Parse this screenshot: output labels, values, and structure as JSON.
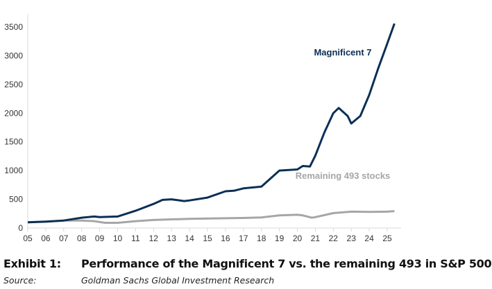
{
  "chart_data": {
    "type": "line",
    "title": "",
    "xlabel": "",
    "ylabel": "",
    "xlim": [
      2005,
      2025.8
    ],
    "ylim": [
      0,
      3500
    ],
    "yticks": [
      0,
      500,
      1000,
      1500,
      2000,
      2500,
      3000,
      3500
    ],
    "xtick_labels": [
      "05",
      "06",
      "07",
      "08",
      "09",
      "10",
      "11",
      "12",
      "13",
      "14",
      "15",
      "16",
      "17",
      "18",
      "19",
      "20",
      "21",
      "22",
      "23",
      "24",
      "25"
    ],
    "grid": false,
    "series": [
      {
        "name": "Magnificent 7",
        "color": "#0b2f55",
        "x": [
          2005,
          2006,
          2007,
          2008,
          2008.7,
          2009,
          2010,
          2011,
          2012,
          2012.5,
          2013,
          2013.7,
          2014,
          2015,
          2016,
          2016.5,
          2017,
          2018,
          2019,
          2020,
          2020.3,
          2020.7,
          2021,
          2021.5,
          2022,
          2022.3,
          2022.8,
          2023,
          2023.5,
          2024,
          2024.5,
          2025,
          2025.4
        ],
        "y": [
          100,
          110,
          130,
          180,
          200,
          190,
          200,
          300,
          420,
          490,
          500,
          470,
          480,
          530,
          640,
          650,
          690,
          720,
          1000,
          1020,
          1080,
          1070,
          1260,
          1660,
          2000,
          2090,
          1950,
          1820,
          1950,
          2320,
          2780,
          3210,
          3560
        ]
      },
      {
        "name": "Remaining 493 stocks",
        "color": "#a6a6a6",
        "x": [
          2005,
          2007,
          2008,
          2008.7,
          2009.3,
          2010,
          2011,
          2012,
          2014,
          2016,
          2017,
          2018,
          2019,
          2020,
          2020.3,
          2020.8,
          2021,
          2022,
          2023,
          2024,
          2025,
          2025.4
        ],
        "y": [
          100,
          130,
          130,
          120,
          90,
          90,
          120,
          140,
          160,
          170,
          175,
          185,
          220,
          230,
          220,
          180,
          190,
          260,
          285,
          280,
          285,
          295
        ]
      }
    ]
  },
  "caption": {
    "exhibit_label": "Exhibit 1:",
    "title": "Performance of the Magnificent 7 vs. the remaining 493 in S&P 500",
    "source_label": "Source:",
    "source": "Goldman Sachs Global Investment Research"
  }
}
